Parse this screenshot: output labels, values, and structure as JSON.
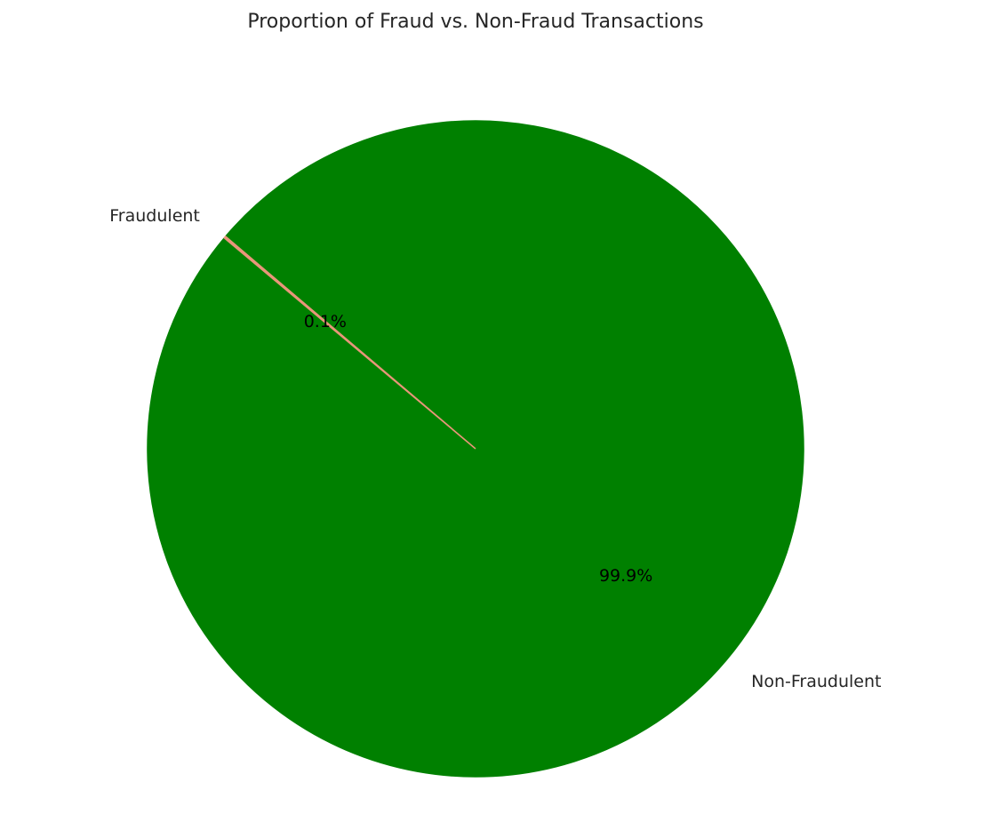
{
  "chart_data": {
    "type": "pie",
    "title": "Proportion of Fraud vs. Non-Fraud Transactions",
    "slices": [
      {
        "label": "Non-Fraudulent",
        "value": 99.9,
        "pct_label": "99.9%",
        "color": "#008000"
      },
      {
        "label": "Fraudulent",
        "value": 0.1,
        "pct_label": "0.1%",
        "color": "#e9967a"
      }
    ]
  }
}
